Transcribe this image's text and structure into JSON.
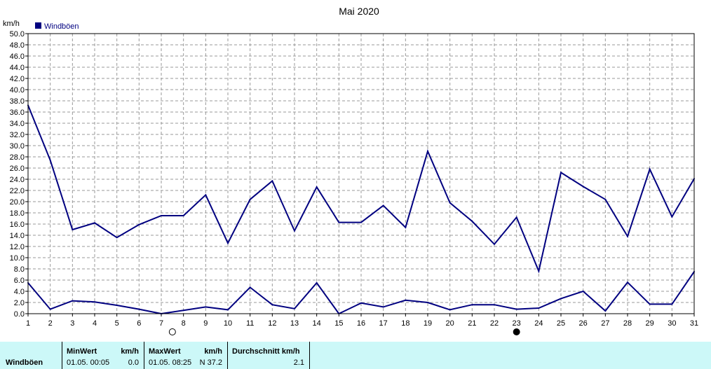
{
  "chart_data": {
    "type": "line",
    "title": "Mai 2020",
    "ylabel": "km/h",
    "ylim": [
      0,
      50
    ],
    "y_ticks": [
      "0.0",
      "2.0",
      "4.0",
      "6.0",
      "8.0",
      "10.0",
      "12.0",
      "14.0",
      "16.0",
      "18.0",
      "20.0",
      "22.0",
      "24.0",
      "26.0",
      "28.0",
      "30.0",
      "32.0",
      "34.0",
      "36.0",
      "38.0",
      "40.0",
      "42.0",
      "44.0",
      "46.0",
      "48.0",
      "50.0"
    ],
    "x_ticks": [
      "1",
      "2",
      "3",
      "4",
      "5",
      "6",
      "7",
      "8",
      "9",
      "10",
      "11",
      "12",
      "13",
      "14",
      "15",
      "16",
      "17",
      "18",
      "19",
      "20",
      "21",
      "22",
      "23",
      "24",
      "25",
      "26",
      "27",
      "28",
      "29",
      "30",
      "31"
    ],
    "grid": true,
    "legend_position": "top-left",
    "color": "#000080",
    "series": [
      {
        "name": "Windböen",
        "values": [
          37.2,
          27.4,
          15.0,
          16.2,
          13.6,
          15.9,
          17.5,
          17.5,
          21.2,
          12.6,
          20.4,
          23.7,
          14.8,
          22.6,
          16.3,
          16.3,
          19.3,
          15.4,
          29.0,
          19.8,
          16.5,
          12.4,
          17.2,
          7.6,
          25.2,
          22.7,
          20.4,
          13.8,
          25.8,
          17.3,
          24.1
        ]
      },
      {
        "values": [
          5.5,
          0.8,
          2.3,
          2.1,
          1.5,
          0.8,
          0.0,
          0.6,
          1.2,
          0.7,
          4.7,
          1.6,
          0.9,
          5.5,
          0.0,
          1.9,
          1.2,
          2.4,
          2.0,
          0.7,
          1.6,
          1.6,
          0.8,
          1.0,
          2.7,
          4.0,
          0.5,
          5.6,
          1.7,
          1.7,
          7.5
        ]
      }
    ],
    "moon_phases": [
      {
        "day": 7.5,
        "phase": "full-moon-icon"
      },
      {
        "day": 23,
        "phase": "new-moon-icon"
      }
    ]
  },
  "stats": {
    "row_label": "Windböen",
    "min_header": "MinWert",
    "min_unit": "km/h",
    "min_datetime": "01.05.  00:05",
    "min_value": "0.0",
    "max_header": "MaxWert",
    "max_unit": "km/h",
    "max_datetime": "01.05.  08:25",
    "max_value": "N 37.2",
    "avg_header": "Durchschnitt km/h",
    "avg_value": "2.1"
  }
}
